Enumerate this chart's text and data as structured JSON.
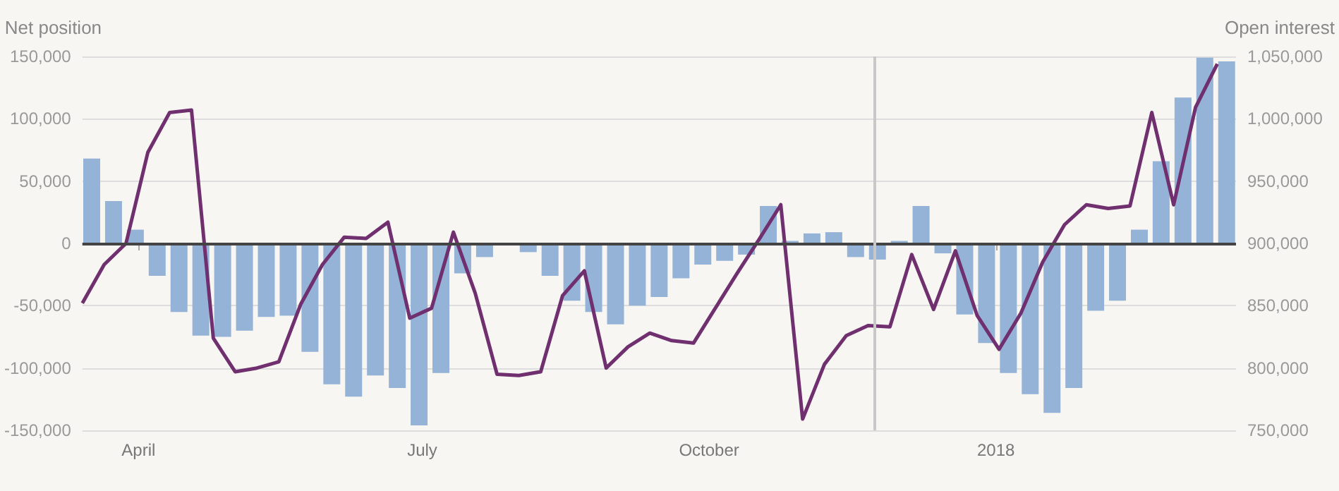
{
  "chart_data": {
    "type": "bar",
    "ylabel": "Net position",
    "y2label": "Open interest",
    "xlim": [
      "2017-03-14",
      "2018-03-19"
    ],
    "xticks": [
      {
        "value": "2017-04-01",
        "label": "April"
      },
      {
        "value": "2017-07-01",
        "label": "July"
      },
      {
        "value": "2017-10-01",
        "label": "October"
      },
      {
        "value": "2018-01-01",
        "label": "2018"
      }
    ],
    "ylim": [
      -150000,
      150000
    ],
    "yticks": [
      {
        "value": -150000,
        "label": "-150,000"
      },
      {
        "value": -100000,
        "label": "-100,000"
      },
      {
        "value": -50000,
        "label": "-50,000"
      },
      0,
      {
        "value": 50000,
        "label": "50,000"
      },
      {
        "value": 100000,
        "label": "100,000"
      },
      {
        "value": 150000,
        "label": "150,000"
      }
    ],
    "y2lim": [
      750000,
      1050000
    ],
    "y2ticks": [
      {
        "value": 750000,
        "label": "750,000"
      },
      {
        "value": 800000,
        "label": "800,000"
      },
      {
        "value": 850000,
        "label": "850,000"
      },
      {
        "value": 900000,
        "label": "900,000"
      },
      {
        "value": 950000,
        "label": "950,000"
      },
      {
        "value": 1000000,
        "label": "1,000,000"
      },
      {
        "value": 1050000,
        "label": "1,050,000"
      }
    ],
    "grid": "y",
    "ref_lines": [
      {
        "axis": "y",
        "value": 0,
        "color": "#444444"
      },
      {
        "axis": "x",
        "value": "2017-11-23",
        "color": "#c8c8c8"
      }
    ],
    "series": [
      {
        "color": "#95b3d7",
        "x": [
          "2017-03-17",
          "2017-03-24",
          "2017-03-31",
          "2017-04-07",
          "2017-04-14",
          "2017-04-21",
          "2017-04-28",
          "2017-05-05",
          "2017-05-12",
          "2017-05-19",
          "2017-05-26",
          "2017-06-02",
          "2017-06-09",
          "2017-06-16",
          "2017-06-23",
          "2017-06-30",
          "2017-07-07",
          "2017-07-14",
          "2017-07-21",
          "2017-07-28",
          "2017-08-04",
          "2017-08-11",
          "2017-08-18",
          "2017-08-25",
          "2017-09-01",
          "2017-09-08",
          "2017-09-15",
          "2017-09-22",
          "2017-09-29",
          "2017-10-06",
          "2017-10-13",
          "2017-10-20",
          "2017-10-27",
          "2017-11-03",
          "2017-11-10",
          "2017-11-17",
          "2017-11-24",
          "2017-12-01",
          "2017-12-08",
          "2017-12-15",
          "2017-12-22",
          "2017-12-29",
          "2018-01-05",
          "2018-01-12",
          "2018-01-19",
          "2018-01-26",
          "2018-02-02",
          "2018-02-09",
          "2018-02-16",
          "2018-02-23",
          "2018-03-02",
          "2018-03-09",
          "2018-03-16"
        ],
        "values": [
          68000,
          34000,
          11000,
          -26000,
          -55000,
          -74000,
          -75000,
          -70000,
          -59000,
          -58000,
          -87000,
          -113000,
          -123000,
          -106000,
          -116000,
          -146000,
          -104000,
          -24000,
          -11000,
          0,
          -7000,
          -26000,
          -46000,
          -55000,
          -65000,
          -50000,
          -43000,
          -28000,
          -17000,
          -14000,
          -9000,
          30000,
          2000,
          8000,
          9000,
          -11000,
          -13000,
          2000,
          30000,
          -8000,
          -57000,
          -80000,
          -104000,
          -121000,
          -136000,
          -116000,
          -54000,
          -46000,
          11000,
          66000,
          117000,
          149000,
          146000
        ]
      },
      {
        "type": "line",
        "axis": "y2",
        "color": "#70306f",
        "marker": "none",
        "x": [
          "2017-03-14",
          "2017-03-21",
          "2017-03-28",
          "2017-04-04",
          "2017-04-11",
          "2017-04-18",
          "2017-04-25",
          "2017-05-02",
          "2017-05-09",
          "2017-05-16",
          "2017-05-23",
          "2017-05-30",
          "2017-06-06",
          "2017-06-13",
          "2017-06-20",
          "2017-06-27",
          "2017-07-04",
          "2017-07-11",
          "2017-07-18",
          "2017-07-25",
          "2017-08-01",
          "2017-08-08",
          "2017-08-15",
          "2017-08-22",
          "2017-08-29",
          "2017-09-05",
          "2017-09-12",
          "2017-09-19",
          "2017-09-26",
          "2017-10-03",
          "2017-10-10",
          "2017-10-17",
          "2017-10-24",
          "2017-10-31",
          "2017-11-07",
          "2017-11-14",
          "2017-11-21",
          "2017-11-28",
          "2017-12-05",
          "2017-12-12",
          "2017-12-19",
          "2017-12-26",
          "2018-01-02",
          "2018-01-09",
          "2018-01-16",
          "2018-01-23",
          "2018-01-30",
          "2018-02-06",
          "2018-02-13",
          "2018-02-20",
          "2018-02-27",
          "2018-03-06",
          "2018-03-13"
        ],
        "values": [
          852000,
          883000,
          900000,
          973000,
          1005000,
          1007000,
          824000,
          797000,
          800000,
          805000,
          851000,
          883000,
          905000,
          904000,
          917000,
          840000,
          848000,
          909000,
          860000,
          795000,
          794000,
          797000,
          858000,
          878000,
          800000,
          817000,
          828000,
          822000,
          820000,
          848000,
          876000,
          903000,
          931000,
          759000,
          803000,
          826000,
          834000,
          833000,
          891000,
          847000,
          894000,
          842000,
          815000,
          844000,
          885000,
          915000,
          931000,
          928000,
          930000,
          1005000,
          931000,
          1009000,
          1044000
        ]
      }
    ]
  }
}
